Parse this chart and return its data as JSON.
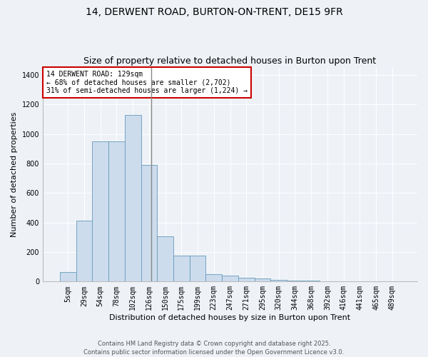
{
  "title1": "14, DERWENT ROAD, BURTON-ON-TRENT, DE15 9FR",
  "title2": "Size of property relative to detached houses in Burton upon Trent",
  "xlabel": "Distribution of detached houses by size in Burton upon Trent",
  "ylabel": "Number of detached properties",
  "categories": [
    "5sqm",
    "29sqm",
    "54sqm",
    "78sqm",
    "102sqm",
    "126sqm",
    "150sqm",
    "175sqm",
    "199sqm",
    "223sqm",
    "247sqm",
    "271sqm",
    "295sqm",
    "320sqm",
    "344sqm",
    "368sqm",
    "392sqm",
    "416sqm",
    "441sqm",
    "465sqm",
    "489sqm"
  ],
  "values": [
    65,
    415,
    950,
    950,
    1130,
    790,
    305,
    175,
    175,
    50,
    40,
    25,
    20,
    12,
    8,
    5,
    3,
    2,
    1,
    1,
    1
  ],
  "bar_color": "#ccdcec",
  "bar_edge_color": "#6699bb",
  "vline_color": "#888888",
  "vline_x": 5.12,
  "annotation_text": "14 DERWENT ROAD: 129sqm\n← 68% of detached houses are smaller (2,702)\n31% of semi-detached houses are larger (1,224) →",
  "annotation_box_edgecolor": "#cc0000",
  "annotation_bg": "#ffffff",
  "ylim": [
    0,
    1450
  ],
  "yticks": [
    0,
    200,
    400,
    600,
    800,
    1000,
    1200,
    1400
  ],
  "bg_color": "#eef2f7",
  "footer": "Contains HM Land Registry data © Crown copyright and database right 2025.\nContains public sector information licensed under the Open Government Licence v3.0.",
  "title1_fontsize": 10,
  "title2_fontsize": 9,
  "xlabel_fontsize": 8,
  "ylabel_fontsize": 8,
  "annot_fontsize": 7,
  "tick_fontsize": 7,
  "footer_fontsize": 6
}
